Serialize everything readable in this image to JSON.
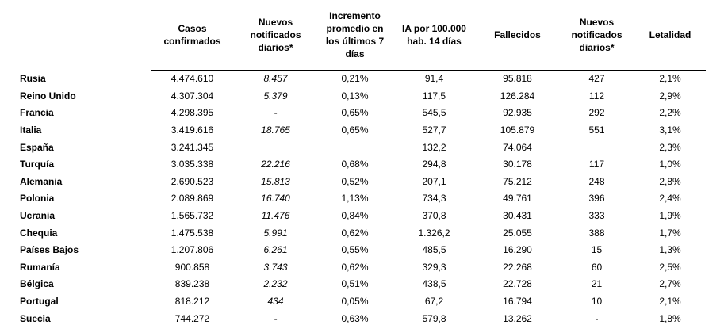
{
  "table": {
    "headers": [
      "Casos confirmados",
      "Nuevos notificados diarios*",
      "Incremento promedio en los últimos 7 días",
      "IA por 100.000 hab. 14 días",
      "Fallecidos",
      "Nuevos notificados diarios*",
      "Letalidad"
    ],
    "rows": [
      [
        "Rusia",
        "4.474.610",
        "8.457",
        "0,21%",
        "91,4",
        "95.818",
        "427",
        "2,1%"
      ],
      [
        "Reino Unido",
        "4.307.304",
        "5.379",
        "0,13%",
        "117,5",
        "126.284",
        "112",
        "2,9%"
      ],
      [
        "Francia",
        "4.298.395",
        "-",
        "0,65%",
        "545,5",
        "92.935",
        "292",
        "2,2%"
      ],
      [
        "Italia",
        "3.419.616",
        "18.765",
        "0,65%",
        "527,7",
        "105.879",
        "551",
        "3,1%"
      ],
      [
        "España",
        "3.241.345",
        null,
        null,
        "132,2",
        "74.064",
        null,
        "2,3%"
      ],
      [
        "Turquía",
        "3.035.338",
        "22.216",
        "0,68%",
        "294,8",
        "30.178",
        "117",
        "1,0%"
      ],
      [
        "Alemania",
        "2.690.523",
        "15.813",
        "0,52%",
        "207,1",
        "75.212",
        "248",
        "2,8%"
      ],
      [
        "Polonia",
        "2.089.869",
        "16.740",
        "1,13%",
        "734,3",
        "49.761",
        "396",
        "2,4%"
      ],
      [
        "Ucrania",
        "1.565.732",
        "11.476",
        "0,84%",
        "370,8",
        "30.431",
        "333",
        "1,9%"
      ],
      [
        "Chequia",
        "1.475.538",
        "5.991",
        "0,62%",
        "1.326,2",
        "25.055",
        "388",
        "1,7%"
      ],
      [
        "Países Bajos",
        "1.207.806",
        "6.261",
        "0,55%",
        "485,5",
        "16.290",
        "15",
        "1,3%"
      ],
      [
        "Rumanía",
        "900.858",
        "3.743",
        "0,62%",
        "329,3",
        "22.268",
        "60",
        "2,5%"
      ],
      [
        "Bélgica",
        "839.238",
        "2.232",
        "0,51%",
        "438,5",
        "22.728",
        "21",
        "2,7%"
      ],
      [
        "Portugal",
        "818.212",
        "434",
        "0,05%",
        "67,2",
        "16.794",
        "10",
        "2,1%"
      ],
      [
        "Suecia",
        "744.272",
        "-",
        "0,63%",
        "579,8",
        "13.262",
        "-",
        "1,8%"
      ]
    ]
  }
}
